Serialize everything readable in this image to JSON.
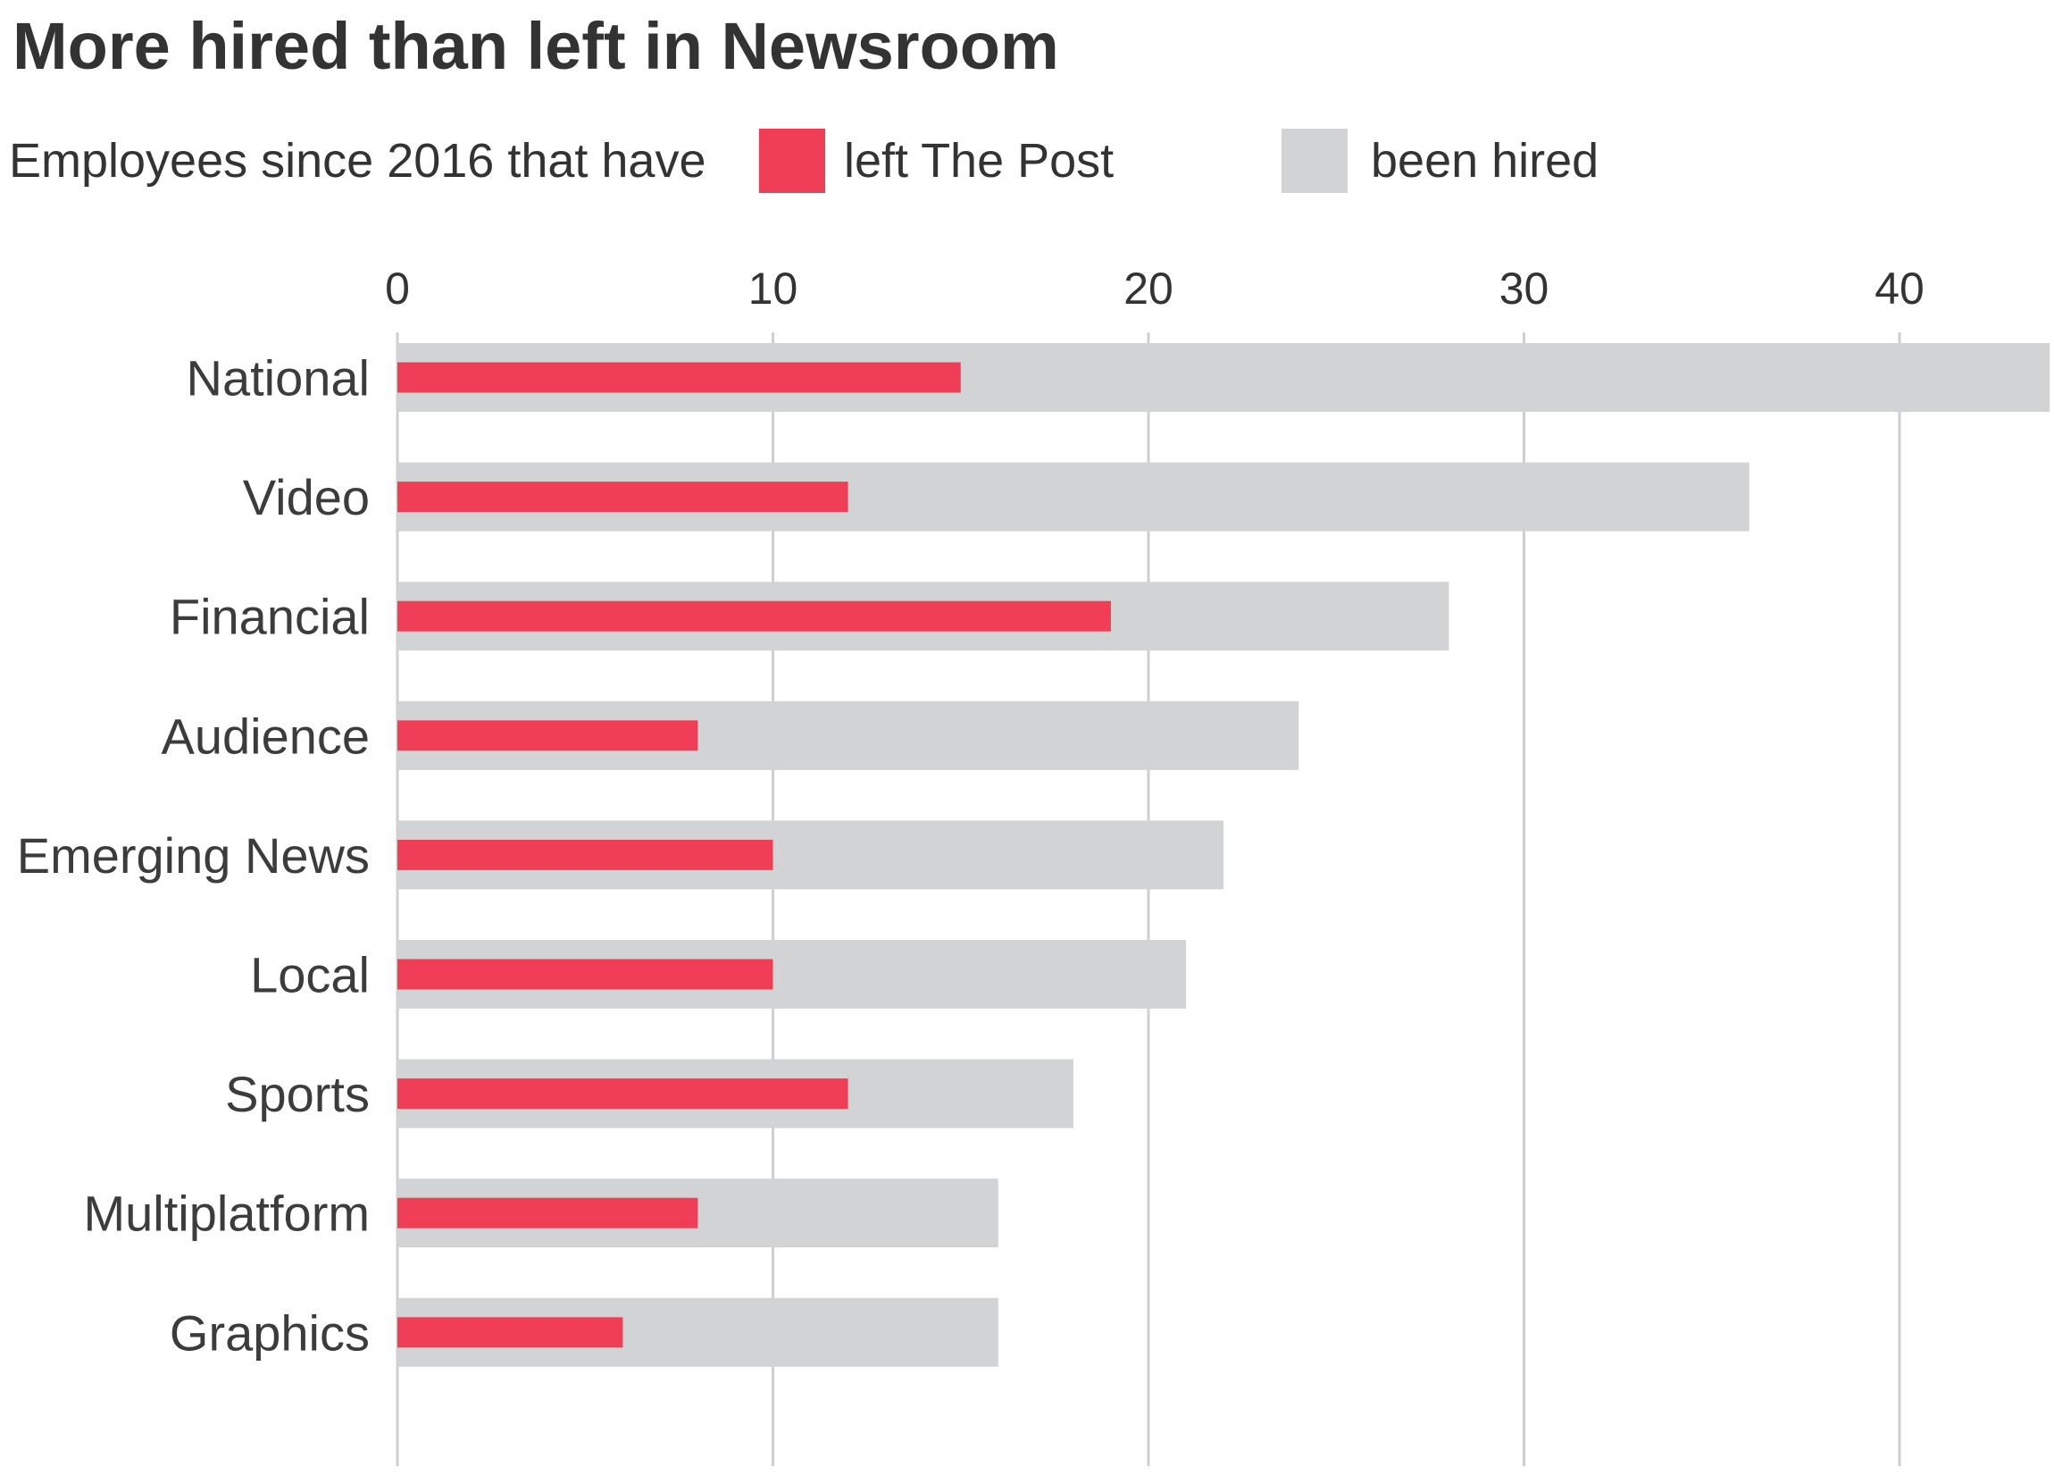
{
  "title": "More hired than left in Newsroom",
  "legend": {
    "intro": "Employees since 2016 that have",
    "items": [
      {
        "label": "left The Post",
        "color": "#f03e57"
      },
      {
        "label": "been hired",
        "color": "#d2d3d5"
      }
    ]
  },
  "chart_data": {
    "type": "bar",
    "orientation": "horizontal",
    "title": "More hired than left in Newsroom",
    "xlabel": "",
    "ylabel": "",
    "xlim": [
      0,
      44
    ],
    "xticks": [
      0,
      10,
      20,
      30,
      40
    ],
    "grid": true,
    "legend_position": "top",
    "categories": [
      "National",
      "Video",
      "Financial",
      "Audience",
      "Emerging News",
      "Local",
      "Sports",
      "Multiplatform",
      "Graphics"
    ],
    "series": [
      {
        "name": "been hired",
        "color": "#d2d3d5",
        "values": [
          44,
          36,
          28,
          24,
          22,
          21,
          18,
          16,
          16
        ]
      },
      {
        "name": "left The Post",
        "color": "#f03e57",
        "values": [
          15,
          12,
          19,
          8,
          10,
          10,
          12,
          8,
          6
        ]
      }
    ]
  }
}
